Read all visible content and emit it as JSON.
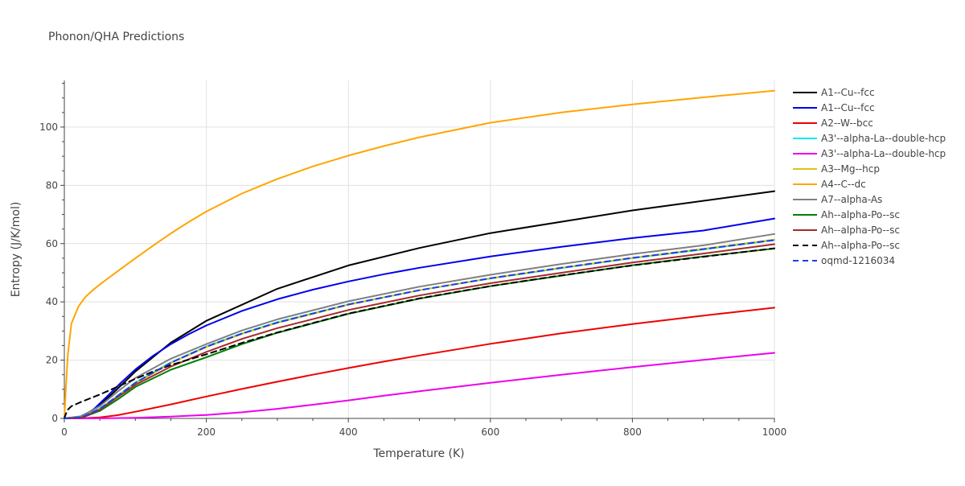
{
  "chart_data": {
    "type": "line",
    "title": "Phonon/QHA Predictions",
    "xlabel": "Temperature (K)",
    "ylabel": "Entropy (J/K/mol)",
    "xlim": [
      0,
      1000
    ],
    "ylim": [
      0,
      116
    ],
    "xticks": [
      0,
      200,
      400,
      600,
      800,
      1000
    ],
    "yticks": [
      0,
      20,
      40,
      60,
      80,
      100
    ],
    "grid": true,
    "legend_position": "right",
    "series": [
      {
        "name": "A1--Cu--fcc",
        "color": "#000000",
        "dash": "solid",
        "x": [
          0,
          25,
          50,
          75,
          100,
          150,
          200,
          300,
          400,
          500,
          600,
          800,
          1000
        ],
        "y": [
          0,
          0.6,
          4.5,
          10.2,
          16.1,
          26.0,
          33.5,
          44.5,
          52.5,
          58.5,
          63.6,
          71.4,
          78.0
        ]
      },
      {
        "name": "A1--Cu--fcc",
        "color": "#0000ee",
        "dash": "solid",
        "x": [
          0,
          20,
          40,
          60,
          80,
          100,
          125,
          150,
          175,
          200,
          250,
          300,
          350,
          400,
          450,
          500,
          600,
          700,
          800,
          900,
          1000
        ],
        "y": [
          0,
          0.3,
          2.8,
          7.5,
          12.3,
          16.8,
          21.5,
          25.5,
          28.9,
          31.9,
          36.9,
          40.9,
          44.2,
          47.0,
          49.5,
          51.7,
          55.6,
          58.9,
          61.9,
          64.5,
          68.6
        ]
      },
      {
        "name": "A2--W--bcc",
        "color": "#ee0000",
        "dash": "solid",
        "x": [
          0,
          25,
          50,
          75,
          100,
          150,
          200,
          250,
          300,
          350,
          400,
          450,
          500,
          600,
          700,
          800,
          900,
          1000
        ],
        "y": [
          0,
          0.05,
          0.35,
          1.1,
          2.3,
          4.8,
          7.5,
          10.1,
          12.6,
          15.0,
          17.3,
          19.5,
          21.6,
          25.6,
          29.2,
          32.4,
          35.3,
          38.0
        ]
      },
      {
        "name": "A3'--alpha-La--double-hcp",
        "color": "#00eeee",
        "dash": "solid",
        "x": [
          0,
          25,
          50,
          75,
          100,
          150,
          200,
          250,
          300,
          400,
          500,
          600,
          700,
          800,
          900,
          1000
        ],
        "y": [
          0,
          0.5,
          3.4,
          7.8,
          12.3,
          19.2,
          24.7,
          29.2,
          33.0,
          39.1,
          44.0,
          48.0,
          51.6,
          55.0,
          58.0,
          61.2
        ]
      },
      {
        "name": "A3'--alpha-La--double-hcp",
        "color": "#ee00ee",
        "dash": "solid",
        "x": [
          0,
          50,
          100,
          150,
          200,
          250,
          300,
          350,
          400,
          450,
          500,
          600,
          700,
          800,
          900,
          1000
        ],
        "y": [
          0,
          0.02,
          0.2,
          0.6,
          1.2,
          2.1,
          3.3,
          4.7,
          6.2,
          7.8,
          9.3,
          12.2,
          15.0,
          17.6,
          20.1,
          22.5
        ]
      },
      {
        "name": "A3--Mg--hcp",
        "color": "#e0c020",
        "dash": "solid",
        "x": [
          0,
          25,
          50,
          75,
          100,
          150,
          200,
          250,
          300,
          400,
          500,
          600,
          700,
          800,
          900,
          1000
        ],
        "y": [
          0,
          0.4,
          3.2,
          7.6,
          12.0,
          19.0,
          24.5,
          29.0,
          32.8,
          39.0,
          44.0,
          48.1,
          51.7,
          55.1,
          58.2,
          61.4
        ]
      },
      {
        "name": "A4--C--dc",
        "color": "#ffa500",
        "dash": "solid",
        "x": [
          0,
          2,
          5,
          10,
          20,
          30,
          40,
          50,
          60,
          80,
          100,
          125,
          150,
          175,
          200,
          250,
          300,
          350,
          400,
          450,
          500,
          600,
          700,
          800,
          900,
          1000
        ],
        "y": [
          0,
          10,
          22,
          32.5,
          38.5,
          41.8,
          44.0,
          46.0,
          47.8,
          51.4,
          55.0,
          59.3,
          63.5,
          67.4,
          71.0,
          77.2,
          82.2,
          86.5,
          90.2,
          93.5,
          96.5,
          101.5,
          105.0,
          107.8,
          110.2,
          112.5
        ]
      },
      {
        "name": "A7--alpha-As",
        "color": "#808080",
        "dash": "solid",
        "x": [
          0,
          25,
          50,
          75,
          100,
          150,
          200,
          250,
          300,
          400,
          500,
          600,
          700,
          800,
          900,
          1000
        ],
        "y": [
          0,
          0.8,
          4.2,
          9.2,
          13.9,
          20.5,
          25.5,
          30.2,
          34.0,
          40.2,
          45.2,
          49.3,
          53.0,
          56.4,
          59.4,
          63.3
        ]
      },
      {
        "name": "Ah--alpha-Po--sc",
        "color": "#008000",
        "dash": "solid",
        "x": [
          0,
          25,
          50,
          75,
          100,
          150,
          200,
          250,
          300,
          400,
          500,
          600,
          700,
          800,
          900,
          1000
        ],
        "y": [
          0,
          0.3,
          2.6,
          6.5,
          10.8,
          16.7,
          21.0,
          25.5,
          29.4,
          35.9,
          41.1,
          45.4,
          49.0,
          52.6,
          55.6,
          58.3
        ]
      },
      {
        "name": "Ah--alpha-Po--sc",
        "color": "#a52a2a",
        "dash": "solid",
        "x": [
          0,
          25,
          50,
          75,
          100,
          150,
          200,
          250,
          300,
          400,
          500,
          600,
          700,
          800,
          900,
          1000
        ],
        "y": [
          0,
          0.3,
          3.0,
          7.3,
          11.5,
          17.8,
          22.8,
          27.3,
          31.0,
          37.2,
          42.2,
          46.4,
          50.0,
          53.5,
          56.6,
          59.8
        ]
      },
      {
        "name": "Ah--alpha-Po--sc",
        "color": "#000000",
        "dash": "dashed",
        "x": [
          0,
          2,
          5,
          10,
          25,
          50,
          75,
          100,
          125,
          150,
          200,
          250,
          300,
          400,
          500,
          600,
          700,
          800,
          900,
          1000
        ],
        "y": [
          0,
          1.5,
          3.0,
          4.2,
          5.8,
          8.2,
          10.9,
          13.6,
          16.1,
          18.3,
          22.0,
          25.9,
          29.5,
          36.0,
          41.2,
          45.4,
          49.1,
          52.5,
          55.5,
          58.4
        ]
      },
      {
        "name": "oqmd-1216034",
        "color": "#1f3fe0",
        "dash": "dashed",
        "x": [
          0,
          25,
          50,
          75,
          100,
          150,
          200,
          250,
          300,
          400,
          500,
          600,
          700,
          800,
          900,
          1000
        ],
        "y": [
          0,
          0.4,
          3.3,
          7.7,
          12.2,
          19.1,
          24.6,
          29.1,
          32.9,
          39.1,
          44.0,
          48.1,
          51.7,
          55.1,
          58.1,
          61.2
        ]
      }
    ]
  }
}
